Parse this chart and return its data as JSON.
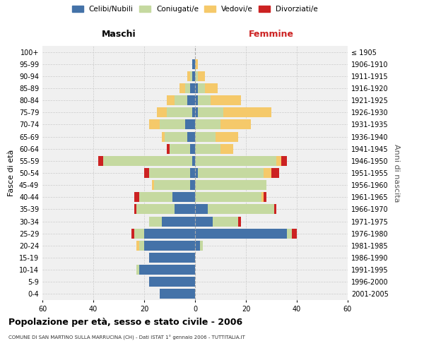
{
  "age_groups": [
    "0-4",
    "5-9",
    "10-14",
    "15-19",
    "20-24",
    "25-29",
    "30-34",
    "35-39",
    "40-44",
    "45-49",
    "50-54",
    "55-59",
    "60-64",
    "65-69",
    "70-74",
    "75-79",
    "80-84",
    "85-89",
    "90-94",
    "95-99",
    "100+"
  ],
  "birth_years": [
    "2001-2005",
    "1996-2000",
    "1991-1995",
    "1986-1990",
    "1981-1985",
    "1976-1980",
    "1971-1975",
    "1966-1970",
    "1961-1965",
    "1956-1960",
    "1951-1955",
    "1946-1950",
    "1941-1945",
    "1936-1940",
    "1931-1935",
    "1926-1930",
    "1921-1925",
    "1916-1920",
    "1911-1915",
    "1906-1910",
    "≤ 1905"
  ],
  "maschi": {
    "celibi": [
      14,
      18,
      22,
      18,
      20,
      20,
      13,
      8,
      9,
      2,
      2,
      1,
      2,
      3,
      4,
      1,
      3,
      2,
      1,
      1,
      0
    ],
    "coniugati": [
      0,
      0,
      1,
      0,
      2,
      4,
      5,
      15,
      13,
      14,
      16,
      35,
      8,
      9,
      10,
      10,
      5,
      2,
      1,
      0,
      0
    ],
    "vedovi": [
      0,
      0,
      0,
      0,
      1,
      0,
      0,
      0,
      0,
      1,
      0,
      0,
      0,
      1,
      4,
      4,
      3,
      2,
      1,
      0,
      0
    ],
    "divorziati": [
      0,
      0,
      0,
      0,
      0,
      1,
      0,
      1,
      2,
      0,
      2,
      2,
      1,
      0,
      0,
      0,
      0,
      0,
      0,
      0,
      0
    ]
  },
  "femmine": {
    "nubili": [
      0,
      0,
      0,
      0,
      2,
      36,
      7,
      5,
      0,
      0,
      1,
      0,
      0,
      0,
      0,
      1,
      1,
      1,
      0,
      0,
      0
    ],
    "coniugate": [
      0,
      0,
      0,
      0,
      1,
      2,
      10,
      26,
      26,
      28,
      26,
      32,
      10,
      8,
      10,
      10,
      5,
      3,
      1,
      0,
      0
    ],
    "vedove": [
      0,
      0,
      0,
      0,
      0,
      0,
      0,
      0,
      1,
      0,
      3,
      2,
      5,
      9,
      12,
      19,
      12,
      5,
      3,
      1,
      0
    ],
    "divorziate": [
      0,
      0,
      0,
      0,
      0,
      2,
      1,
      1,
      1,
      0,
      3,
      2,
      0,
      0,
      0,
      0,
      0,
      0,
      0,
      0,
      0
    ]
  },
  "colors": {
    "celibi": "#4472a8",
    "coniugati": "#c5d9a0",
    "vedovi": "#f5c96a",
    "divorziati": "#cc2222"
  },
  "title": "Popolazione per età, sesso e stato civile - 2006",
  "subtitle": "COMUNE DI SAN MARTINO SULLA MARRUCINA (CH) - Dati ISTAT 1° gennaio 2006 - TUTTITALIA.IT",
  "xlabel_maschi": "Maschi",
  "xlabel_femmine": "Femmine",
  "ylabel_left": "Fasce di età",
  "ylabel_right": "Anni di nascita",
  "xlim": 60,
  "legend_labels": [
    "Celibi/Nubili",
    "Coniugati/e",
    "Vedovi/e",
    "Divorziati/e"
  ],
  "bg_color": "#f0f0f0"
}
